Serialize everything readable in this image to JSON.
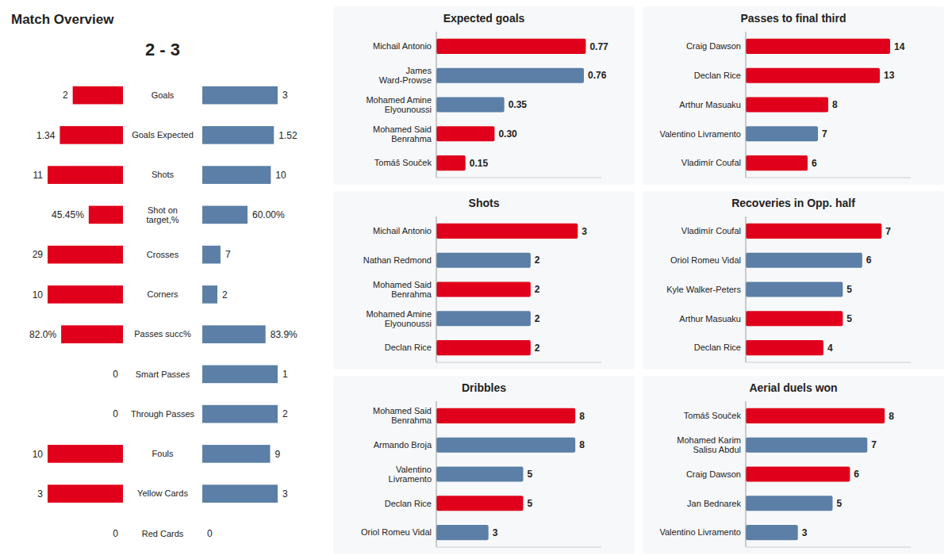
{
  "chart_data": [
    {
      "type": "bar",
      "orientation": "horizontal",
      "title": "Match Overview",
      "subtitle": "2 - 3",
      "categories": [
        "Goals",
        "Goals Expected",
        "Shots",
        "Shot on\ntarget,%",
        "Crosses",
        "Corners",
        "Passes succ%",
        "Smart Passes",
        "Through Passes",
        "Fouls",
        "Yellow Cards",
        "Red Cards"
      ],
      "series": [
        {
          "color": "#E0001B",
          "values": [
            2,
            1.34,
            11,
            45.45,
            29,
            10,
            82.0,
            0,
            0,
            10,
            3,
            0
          ],
          "value_labels": [
            "2",
            "1.34",
            "11",
            "45.45%",
            "29",
            "10",
            "82.0%",
            "0",
            "0",
            "10",
            "3",
            "0"
          ]
        },
        {
          "color": "#5B7FA6",
          "values": [
            3,
            1.52,
            10,
            60.0,
            7,
            2,
            83.9,
            1,
            2,
            9,
            3,
            0
          ],
          "value_labels": [
            "3",
            "1.52",
            "10",
            "60.00%",
            "7",
            "2",
            "83.9%",
            "1",
            "2",
            "9",
            "3",
            "0"
          ]
        }
      ],
      "row_max": [
        3,
        1.6,
        11,
        100,
        29,
        10,
        100,
        1,
        2,
        10,
        3,
        1
      ],
      "data_labels": true,
      "tick_labels": "y"
    },
    {
      "type": "bar",
      "orientation": "horizontal",
      "title": "Expected goals",
      "categories": [
        "Michail Antonio",
        "James\nWard-Prowse",
        "Mohamed Amine\nElyounoussi",
        "Mohamed Said\nBenrahma",
        "Tomáš Souček"
      ],
      "values": [
        0.77,
        0.76,
        0.35,
        0.3,
        0.15
      ],
      "value_labels": [
        "0.77",
        "0.76",
        "0.35",
        "0.30",
        "0.15"
      ],
      "colors": [
        "#E0001B",
        "#5B7FA6",
        "#5B7FA6",
        "#E0001B",
        "#E0001B"
      ],
      "xlim": [
        0,
        0.85
      ],
      "data_labels": true,
      "tick_labels": "y"
    },
    {
      "type": "bar",
      "orientation": "horizontal",
      "title": "Passes to final third",
      "categories": [
        "Craig Dawson",
        "Declan Rice",
        "Arthur Masuaku",
        "Valentino Livramento",
        "Vladimír Coufal"
      ],
      "values": [
        14,
        13,
        8,
        7,
        6
      ],
      "colors": [
        "#E0001B",
        "#E0001B",
        "#E0001B",
        "#5B7FA6",
        "#E0001B"
      ],
      "xlim": [
        0,
        16
      ],
      "data_labels": true,
      "tick_labels": "y"
    },
    {
      "type": "bar",
      "orientation": "horizontal",
      "title": "Shots",
      "categories": [
        "Michail Antonio",
        "Nathan Redmond",
        "Mohamed Said\nBenrahma",
        "Mohamed Amine\nElyounoussi",
        "Declan Rice"
      ],
      "values": [
        3,
        2,
        2,
        2,
        2
      ],
      "colors": [
        "#E0001B",
        "#5B7FA6",
        "#E0001B",
        "#5B7FA6",
        "#E0001B"
      ],
      "xlim": [
        0,
        3.5
      ],
      "data_labels": true,
      "tick_labels": "y"
    },
    {
      "type": "bar",
      "orientation": "horizontal",
      "title": "Recoveries in Opp. half",
      "categories": [
        "Vladimír Coufal",
        "Oriol Romeu Vidal",
        "Kyle Walker-Peters",
        "Arthur Masuaku",
        "Declan Rice"
      ],
      "values": [
        7,
        6,
        5,
        5,
        4
      ],
      "colors": [
        "#E0001B",
        "#5B7FA6",
        "#5B7FA6",
        "#E0001B",
        "#E0001B"
      ],
      "xlim": [
        0,
        8.5
      ],
      "data_labels": true,
      "tick_labels": "y"
    },
    {
      "type": "bar",
      "orientation": "horizontal",
      "title": "Dribbles",
      "categories": [
        "Mohamed Said\nBenrahma",
        "Armando Broja",
        "Valentino\nLivramento",
        "Declan Rice",
        "Oriol Romeu Vidal"
      ],
      "values": [
        8,
        8,
        5,
        5,
        3
      ],
      "colors": [
        "#E0001B",
        "#5B7FA6",
        "#5B7FA6",
        "#E0001B",
        "#5B7FA6"
      ],
      "xlim": [
        0,
        9.5
      ],
      "data_labels": true,
      "tick_labels": "y"
    },
    {
      "type": "bar",
      "orientation": "horizontal",
      "title": "Aerial duels won",
      "categories": [
        "Tomáš Souček",
        "Mohamed Karim\nSalisu Abdul",
        "Craig Dawson",
        "Jan Bednarek",
        "Valentino Livramento"
      ],
      "values": [
        8,
        7,
        6,
        5,
        3
      ],
      "colors": [
        "#E0001B",
        "#5B7FA6",
        "#E0001B",
        "#5B7FA6",
        "#5B7FA6"
      ],
      "xlim": [
        0,
        9.5
      ],
      "data_labels": true,
      "tick_labels": "y"
    }
  ]
}
